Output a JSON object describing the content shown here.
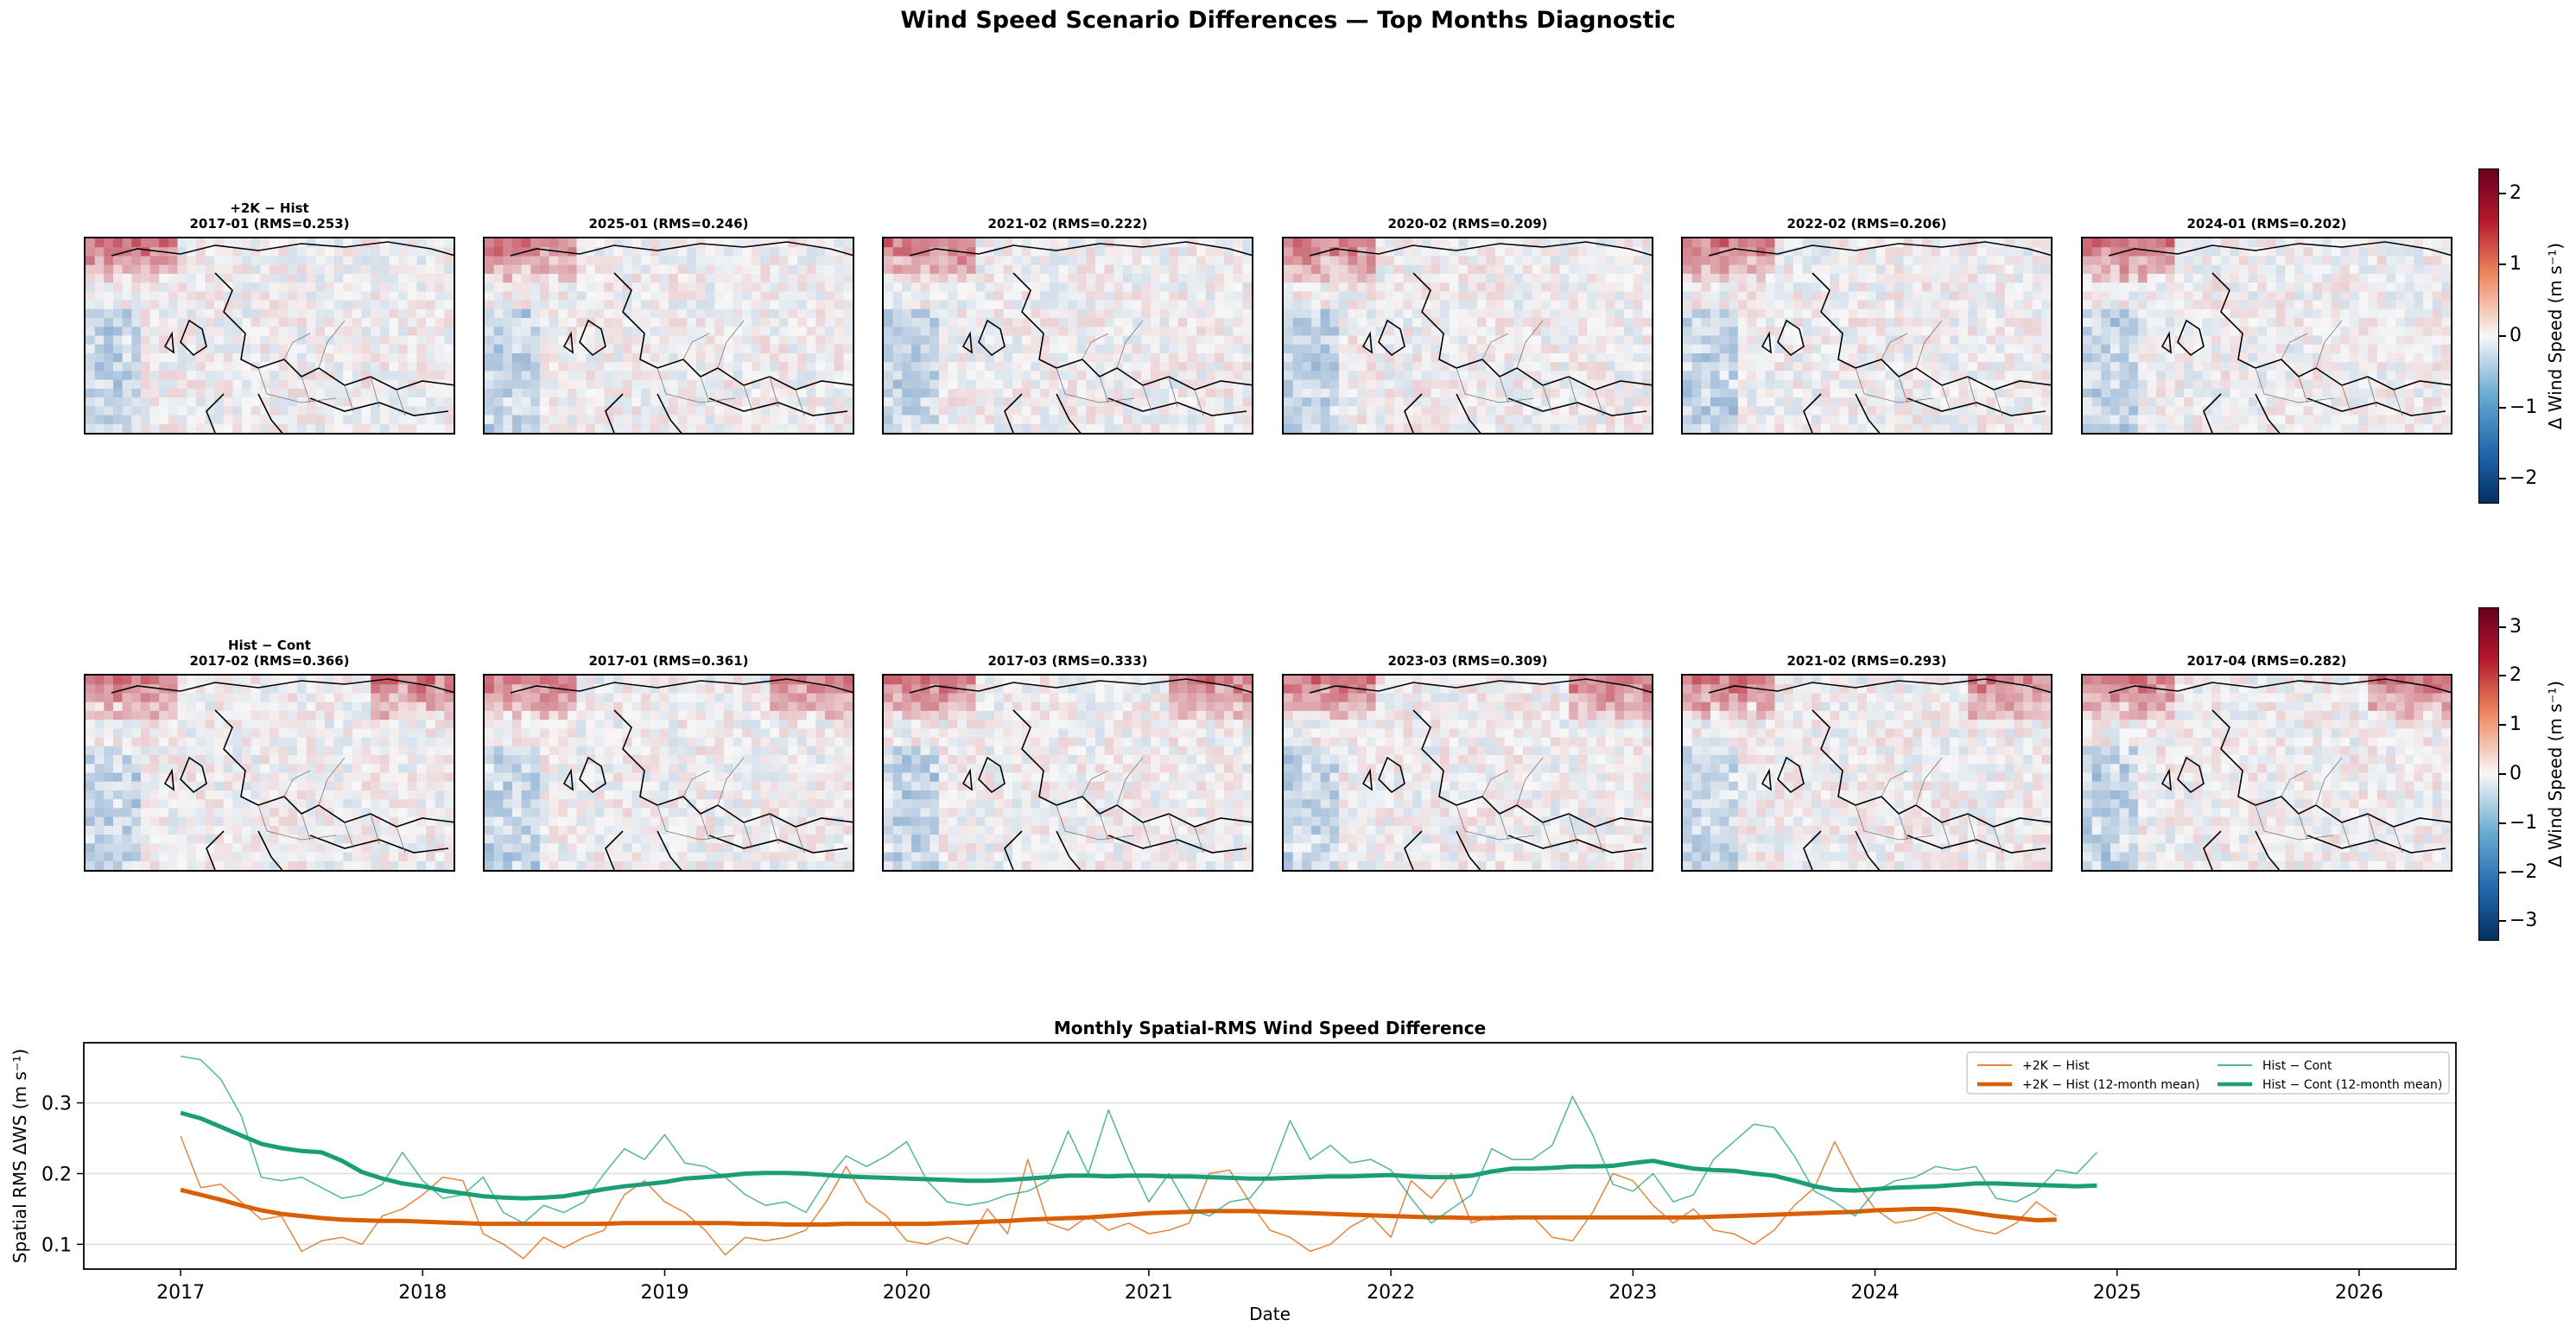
{
  "figure": {
    "title": "Wind Speed Scenario Differences — Top Months Diagnostic"
  },
  "row1": {
    "titles": [
      "+2K − Hist\n2017-01 (RMS=0.253)",
      "2025-01 (RMS=0.246)",
      "2021-02 (RMS=0.222)",
      "2020-02 (RMS=0.209)",
      "2022-02 (RMS=0.206)",
      "2024-01 (RMS=0.202)"
    ],
    "colorbar": {
      "label": "Δ Wind Speed (m s⁻¹)",
      "ticks": [
        "2",
        "1",
        "0",
        "−1",
        "−2"
      ],
      "range": [
        -2.35,
        2.35
      ],
      "tick_values": [
        2,
        1,
        0,
        -1,
        -2
      ]
    }
  },
  "row2": {
    "titles": [
      "Hist − Cont\n2017-02 (RMS=0.366)",
      "2017-01 (RMS=0.361)",
      "2017-03 (RMS=0.333)",
      "2023-03 (RMS=0.309)",
      "2021-02 (RMS=0.293)",
      "2017-04 (RMS=0.282)"
    ],
    "colorbar": {
      "label": "Δ Wind Speed (m s⁻¹)",
      "ticks": [
        "3",
        "2",
        "1",
        "0",
        "−1",
        "−2",
        "−3"
      ],
      "range": [
        -3.4,
        3.4
      ],
      "tick_values": [
        3,
        2,
        1,
        0,
        -1,
        -2,
        -3
      ]
    }
  },
  "colors": {
    "warm": "#b2182b",
    "cool": "#2166ac",
    "line_2k": "#d95f02",
    "line_hist": "#1b9e77"
  },
  "chart_data": {
    "type": "line",
    "title": "Monthly Spatial-RMS Wind Speed Difference",
    "xlabel": "Date",
    "ylabel": "Spatial RMS ΔWS (m s⁻¹)",
    "xlim": [
      2016.6,
      2026.4
    ],
    "ylim": [
      0.065,
      0.385
    ],
    "xticks": [
      "2017",
      "2018",
      "2019",
      "2020",
      "2021",
      "2022",
      "2023",
      "2024",
      "2025",
      "2026"
    ],
    "yticks": [
      "0.1",
      "0.2",
      "0.3"
    ],
    "grid": "horizontal",
    "legend_position": "top-right",
    "series": [
      {
        "name": "+2K − Hist",
        "style": "thin",
        "x_start": "2017-01",
        "values": [
          0.253,
          0.18,
          0.185,
          0.16,
          0.135,
          0.14,
          0.09,
          0.105,
          0.11,
          0.1,
          0.14,
          0.15,
          0.17,
          0.195,
          0.19,
          0.115,
          0.1,
          0.08,
          0.11,
          0.095,
          0.11,
          0.12,
          0.17,
          0.19,
          0.16,
          0.145,
          0.12,
          0.085,
          0.11,
          0.105,
          0.11,
          0.12,
          0.16,
          0.21,
          0.16,
          0.14,
          0.105,
          0.1,
          0.11,
          0.1,
          0.15,
          0.115,
          0.22,
          0.13,
          0.12,
          0.14,
          0.12,
          0.13,
          0.115,
          0.12,
          0.13,
          0.2,
          0.205,
          0.16,
          0.12,
          0.11,
          0.09,
          0.1,
          0.125,
          0.14,
          0.11,
          0.19,
          0.165,
          0.2,
          0.13,
          0.14,
          0.135,
          0.14,
          0.11,
          0.105,
          0.145,
          0.2,
          0.19,
          0.155,
          0.13,
          0.15,
          0.12,
          0.115,
          0.1,
          0.12,
          0.155,
          0.18,
          0.245,
          0.19,
          0.15,
          0.13,
          0.135,
          0.145,
          0.13,
          0.12,
          0.115,
          0.13,
          0.16,
          0.14
        ]
      },
      {
        "name": "+2K − Hist (12-month mean)",
        "style": "thick",
        "x_start": "2017-01",
        "values": [
          0.177,
          0.17,
          0.163,
          0.155,
          0.148,
          0.143,
          0.14,
          0.137,
          0.135,
          0.134,
          0.133,
          0.133,
          0.132,
          0.131,
          0.13,
          0.129,
          0.129,
          0.129,
          0.129,
          0.129,
          0.129,
          0.129,
          0.13,
          0.13,
          0.13,
          0.13,
          0.13,
          0.13,
          0.129,
          0.129,
          0.128,
          0.128,
          0.128,
          0.129,
          0.129,
          0.129,
          0.129,
          0.129,
          0.13,
          0.131,
          0.132,
          0.133,
          0.135,
          0.136,
          0.137,
          0.138,
          0.14,
          0.142,
          0.144,
          0.145,
          0.146,
          0.147,
          0.147,
          0.147,
          0.146,
          0.145,
          0.144,
          0.143,
          0.142,
          0.141,
          0.14,
          0.139,
          0.138,
          0.138,
          0.137,
          0.137,
          0.138,
          0.138,
          0.138,
          0.138,
          0.138,
          0.138,
          0.138,
          0.138,
          0.138,
          0.138,
          0.139,
          0.14,
          0.141,
          0.142,
          0.143,
          0.144,
          0.145,
          0.146,
          0.148,
          0.149,
          0.15,
          0.15,
          0.148,
          0.144,
          0.14,
          0.137,
          0.134,
          0.135
        ]
      },
      {
        "name": "Hist − Cont",
        "style": "thin",
        "x_start": "2017-01",
        "values": [
          0.366,
          0.361,
          0.333,
          0.282,
          0.195,
          0.19,
          0.195,
          0.18,
          0.165,
          0.17,
          0.185,
          0.23,
          0.19,
          0.165,
          0.17,
          0.195,
          0.145,
          0.13,
          0.155,
          0.145,
          0.16,
          0.2,
          0.235,
          0.22,
          0.255,
          0.215,
          0.21,
          0.195,
          0.17,
          0.155,
          0.16,
          0.145,
          0.19,
          0.225,
          0.21,
          0.225,
          0.245,
          0.19,
          0.16,
          0.155,
          0.16,
          0.17,
          0.175,
          0.19,
          0.26,
          0.2,
          0.29,
          0.22,
          0.16,
          0.2,
          0.15,
          0.14,
          0.16,
          0.165,
          0.2,
          0.275,
          0.22,
          0.24,
          0.215,
          0.22,
          0.205,
          0.165,
          0.13,
          0.15,
          0.17,
          0.235,
          0.22,
          0.22,
          0.24,
          0.309,
          0.255,
          0.185,
          0.175,
          0.2,
          0.16,
          0.17,
          0.22,
          0.245,
          0.27,
          0.265,
          0.225,
          0.175,
          0.16,
          0.14,
          0.175,
          0.19,
          0.195,
          0.21,
          0.205,
          0.21,
          0.165,
          0.16,
          0.175,
          0.205,
          0.2,
          0.23
        ]
      },
      {
        "name": "Hist − Cont (12-month mean)",
        "style": "thick",
        "x_start": "2017-01",
        "values": [
          0.286,
          0.278,
          0.266,
          0.254,
          0.242,
          0.236,
          0.232,
          0.23,
          0.218,
          0.202,
          0.193,
          0.186,
          0.182,
          0.176,
          0.172,
          0.168,
          0.166,
          0.165,
          0.166,
          0.168,
          0.173,
          0.178,
          0.182,
          0.185,
          0.188,
          0.193,
          0.195,
          0.197,
          0.2,
          0.201,
          0.201,
          0.2,
          0.198,
          0.196,
          0.195,
          0.194,
          0.193,
          0.192,
          0.191,
          0.19,
          0.19,
          0.191,
          0.193,
          0.195,
          0.197,
          0.197,
          0.196,
          0.197,
          0.197,
          0.196,
          0.196,
          0.195,
          0.194,
          0.193,
          0.193,
          0.194,
          0.195,
          0.196,
          0.196,
          0.197,
          0.198,
          0.196,
          0.195,
          0.195,
          0.197,
          0.203,
          0.207,
          0.207,
          0.208,
          0.21,
          0.21,
          0.211,
          0.215,
          0.218,
          0.212,
          0.207,
          0.205,
          0.204,
          0.2,
          0.197,
          0.19,
          0.182,
          0.177,
          0.176,
          0.178,
          0.18,
          0.181,
          0.182,
          0.184,
          0.186,
          0.186,
          0.185,
          0.184,
          0.183,
          0.182,
          0.183
        ]
      }
    ]
  }
}
